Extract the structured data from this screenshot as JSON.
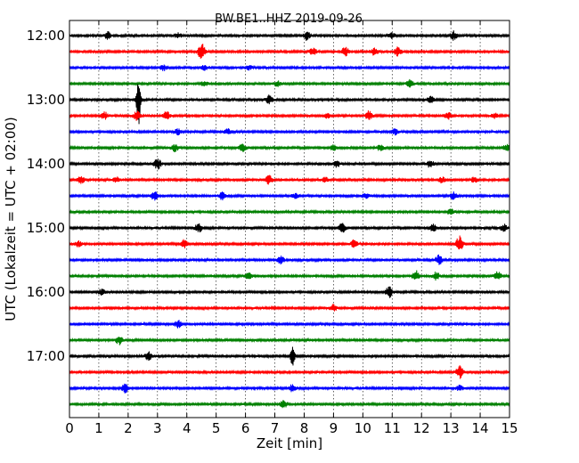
{
  "chart_data": {
    "type": "line",
    "title": "BW.BE1..HHZ 2019-09-26",
    "xlabel": "Zeit  [min]",
    "ylabel": "UTC (Lokalzeit = UTC + 02:00)",
    "xlim": [
      0,
      15
    ],
    "x_ticks": [
      "0",
      "1",
      "2",
      "3",
      "4",
      "5",
      "6",
      "7",
      "8",
      "9",
      "10",
      "11",
      "12",
      "13",
      "14",
      "15"
    ],
    "y_ticks": [
      "12:00",
      "13:00",
      "14:00",
      "15:00",
      "16:00",
      "17:00"
    ],
    "grid": true,
    "trace_interval_minutes": 15,
    "colors": [
      "#000000",
      "#ff0000",
      "#0000ff",
      "#008000"
    ],
    "traces": [
      {
        "start": "12:00",
        "color": "#000000",
        "events": [
          [
            1.3,
            4
          ],
          [
            3.7,
            3
          ],
          [
            8.1,
            5
          ],
          [
            11,
            3
          ],
          [
            13.1,
            5
          ]
        ]
      },
      {
        "start": "12:15",
        "color": "#ff0000",
        "events": [
          [
            4.5,
            9
          ],
          [
            8.3,
            4
          ],
          [
            9.4,
            5
          ],
          [
            10.4,
            4
          ],
          [
            11.2,
            5
          ]
        ]
      },
      {
        "start": "12:30",
        "color": "#0000ff",
        "events": [
          [
            3.2,
            3
          ],
          [
            4.6,
            3
          ],
          [
            6.1,
            3
          ]
        ]
      },
      {
        "start": "12:45",
        "color": "#008000",
        "events": [
          [
            4.6,
            3
          ],
          [
            7.1,
            3
          ],
          [
            11.6,
            4
          ]
        ]
      },
      {
        "start": "13:00",
        "color": "#000000",
        "events": [
          [
            2.35,
            30
          ],
          [
            6.8,
            5
          ],
          [
            12.3,
            4
          ]
        ]
      },
      {
        "start": "13:15",
        "color": "#ff0000",
        "events": [
          [
            1.2,
            4
          ],
          [
            2.3,
            5
          ],
          [
            3.3,
            5
          ],
          [
            8.8,
            3
          ],
          [
            10.2,
            5
          ],
          [
            12.9,
            4
          ],
          [
            14.5,
            3
          ]
        ]
      },
      {
        "start": "13:30",
        "color": "#0000ff",
        "events": [
          [
            3.7,
            3
          ],
          [
            5.4,
            3
          ],
          [
            11.1,
            3
          ]
        ]
      },
      {
        "start": "13:45",
        "color": "#008000",
        "events": [
          [
            3.6,
            4
          ],
          [
            5.9,
            4
          ],
          [
            9,
            3
          ],
          [
            10.6,
            3
          ],
          [
            14.9,
            4
          ]
        ]
      },
      {
        "start": "14:00",
        "color": "#000000",
        "events": [
          [
            3,
            6
          ],
          [
            9.1,
            4
          ],
          [
            12.3,
            4
          ]
        ]
      },
      {
        "start": "14:15",
        "color": "#ff0000",
        "events": [
          [
            0.4,
            4
          ],
          [
            1.6,
            3
          ],
          [
            6.8,
            5
          ],
          [
            8.7,
            3
          ],
          [
            12.7,
            3
          ],
          [
            13.8,
            3
          ]
        ]
      },
      {
        "start": "14:30",
        "color": "#0000ff",
        "events": [
          [
            2.9,
            5
          ],
          [
            5.2,
            4
          ],
          [
            7.7,
            3
          ],
          [
            10.1,
            3
          ],
          [
            13.1,
            4
          ]
        ]
      },
      {
        "start": "14:45",
        "color": "#008000",
        "events": [
          [
            13,
            3
          ]
        ]
      },
      {
        "start": "15:00",
        "color": "#000000",
        "events": [
          [
            4.4,
            5
          ],
          [
            9.3,
            5
          ],
          [
            12.4,
            4
          ],
          [
            14.8,
            4
          ]
        ]
      },
      {
        "start": "15:15",
        "color": "#ff0000",
        "events": [
          [
            0.3,
            3
          ],
          [
            3.9,
            5
          ],
          [
            9.7,
            4
          ],
          [
            13.3,
            9
          ]
        ]
      },
      {
        "start": "15:30",
        "color": "#0000ff",
        "events": [
          [
            7.2,
            4
          ],
          [
            12.6,
            5
          ]
        ]
      },
      {
        "start": "15:45",
        "color": "#008000",
        "events": [
          [
            6.1,
            4
          ],
          [
            11.8,
            6
          ],
          [
            12.5,
            4
          ],
          [
            14.6,
            5
          ]
        ]
      },
      {
        "start": "16:00",
        "color": "#000000",
        "events": [
          [
            1.1,
            3
          ],
          [
            10.9,
            6
          ]
        ]
      },
      {
        "start": "16:15",
        "color": "#ff0000",
        "events": [
          [
            9,
            4
          ]
        ]
      },
      {
        "start": "16:30",
        "color": "#0000ff",
        "events": [
          [
            3.7,
            4
          ]
        ]
      },
      {
        "start": "16:45",
        "color": "#008000",
        "events": [
          [
            1.7,
            5
          ]
        ]
      },
      {
        "start": "17:00",
        "color": "#000000",
        "events": [
          [
            2.7,
            5
          ],
          [
            7.6,
            11
          ]
        ]
      },
      {
        "start": "17:15",
        "color": "#ff0000",
        "events": [
          [
            13.3,
            7
          ]
        ]
      },
      {
        "start": "17:30",
        "color": "#0000ff",
        "events": [
          [
            1.9,
            5
          ],
          [
            7.6,
            4
          ],
          [
            13.3,
            3
          ]
        ]
      },
      {
        "start": "17:45",
        "color": "#008000",
        "events": [
          [
            7.3,
            4
          ]
        ]
      }
    ]
  }
}
